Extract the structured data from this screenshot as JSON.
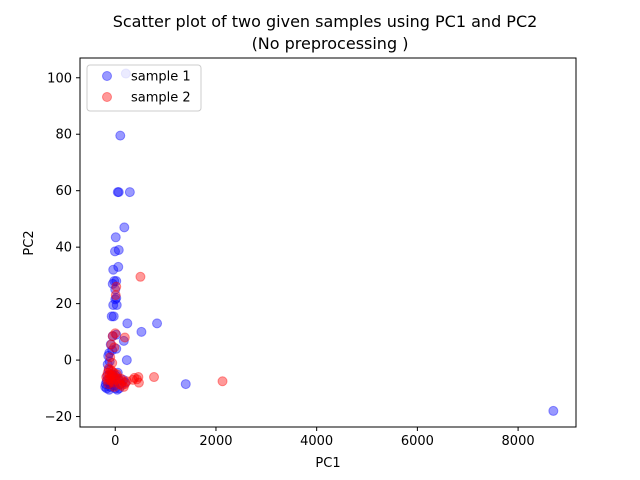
{
  "chart_data": {
    "type": "scatter",
    "title_lines": [
      "Scatter plot of two given samples using PC1 and PC2",
      "(No preprocessing )"
    ],
    "xlabel": "PC1",
    "ylabel": "PC2",
    "xlim": [
      -700,
      9150
    ],
    "ylim": [
      -23.7,
      107
    ],
    "xticks": [
      0,
      2000,
      4000,
      6000,
      8000
    ],
    "yticks": [
      -20,
      0,
      20,
      40,
      60,
      80,
      100
    ],
    "grid": false,
    "legend_position": "top-left",
    "series": [
      {
        "name": "sample 1",
        "color": "#0000ff",
        "alpha": 0.4,
        "points": [
          [
            8700,
            -18
          ],
          [
            1400,
            -8.5
          ],
          [
            830,
            13
          ],
          [
            520,
            10
          ],
          [
            230,
            0
          ],
          [
            240,
            13
          ],
          [
            170,
            6.8
          ],
          [
            210,
            101.5
          ],
          [
            100,
            79.5
          ],
          [
            50,
            59.5
          ],
          [
            70,
            59.5
          ],
          [
            290,
            59.5
          ],
          [
            180,
            47
          ],
          [
            10,
            43.5
          ],
          [
            70,
            39
          ],
          [
            -5,
            38.5
          ],
          [
            60,
            33
          ],
          [
            -40,
            32
          ],
          [
            -20,
            28
          ],
          [
            20,
            28
          ],
          [
            -50,
            27
          ],
          [
            0,
            25
          ],
          [
            20,
            22
          ],
          [
            0,
            21.5
          ],
          [
            -40,
            19.5
          ],
          [
            30,
            19.5
          ],
          [
            -70,
            15.5
          ],
          [
            -30,
            15.5
          ],
          [
            -50,
            8.5
          ],
          [
            20,
            9
          ],
          [
            -90,
            5.5
          ],
          [
            -60,
            3.5
          ],
          [
            20,
            4
          ],
          [
            -120,
            2.5
          ],
          [
            -140,
            1.5
          ],
          [
            -110,
            -0.5
          ],
          [
            -150,
            -1.5
          ],
          [
            -130,
            -3.5
          ],
          [
            -160,
            -5.5
          ],
          [
            -170,
            -7.5
          ],
          [
            -190,
            -8.5
          ],
          [
            -200,
            -9.5
          ],
          [
            -170,
            -10
          ],
          [
            -120,
            -10.5
          ],
          [
            -90,
            -9.5
          ],
          [
            -50,
            -8
          ],
          [
            -20,
            -9
          ],
          [
            0,
            -10
          ],
          [
            40,
            -10.5
          ],
          [
            80,
            -10
          ],
          [
            120,
            -8.5
          ],
          [
            160,
            -7
          ],
          [
            200,
            -8
          ],
          [
            60,
            -7
          ],
          [
            -30,
            -6
          ],
          [
            -60,
            -5
          ],
          [
            10,
            -5.5
          ],
          [
            50,
            -4.5
          ],
          [
            -100,
            -8.5
          ]
        ]
      },
      {
        "name": "sample 2",
        "color": "#ff0000",
        "alpha": 0.4,
        "points": [
          [
            2130,
            -7.5
          ],
          [
            770,
            -6
          ],
          [
            500,
            29.5
          ],
          [
            460,
            -6
          ],
          [
            430,
            -6.8
          ],
          [
            470,
            -8
          ],
          [
            380,
            -6.3
          ],
          [
            350,
            -7
          ],
          [
            190,
            8
          ],
          [
            20,
            26
          ],
          [
            10,
            23
          ],
          [
            0,
            9.5
          ],
          [
            -50,
            8.5
          ],
          [
            -80,
            5.5
          ],
          [
            -20,
            4.5
          ],
          [
            -100,
            1
          ],
          [
            -60,
            -1
          ],
          [
            -130,
            -3
          ],
          [
            -90,
            -3.5
          ],
          [
            -150,
            -4.5
          ],
          [
            -110,
            -5
          ],
          [
            -70,
            -5.5
          ],
          [
            -30,
            -4.5
          ],
          [
            -10,
            -6
          ],
          [
            -120,
            -6.5
          ],
          [
            -160,
            -7
          ],
          [
            -80,
            -7.5
          ],
          [
            -40,
            -8
          ],
          [
            20,
            -7
          ],
          [
            60,
            -6.5
          ],
          [
            110,
            -6.5
          ],
          [
            150,
            -7.5
          ],
          [
            190,
            -8.5
          ],
          [
            230,
            -7.5
          ],
          [
            90,
            -8.5
          ],
          [
            -20,
            -9.5
          ],
          [
            -140,
            -8.5
          ],
          [
            -180,
            -6
          ],
          [
            -60,
            -4
          ],
          [
            30,
            -5
          ],
          [
            130,
            -9
          ],
          [
            170,
            -9.5
          ],
          [
            -100,
            -7
          ]
        ]
      }
    ]
  }
}
